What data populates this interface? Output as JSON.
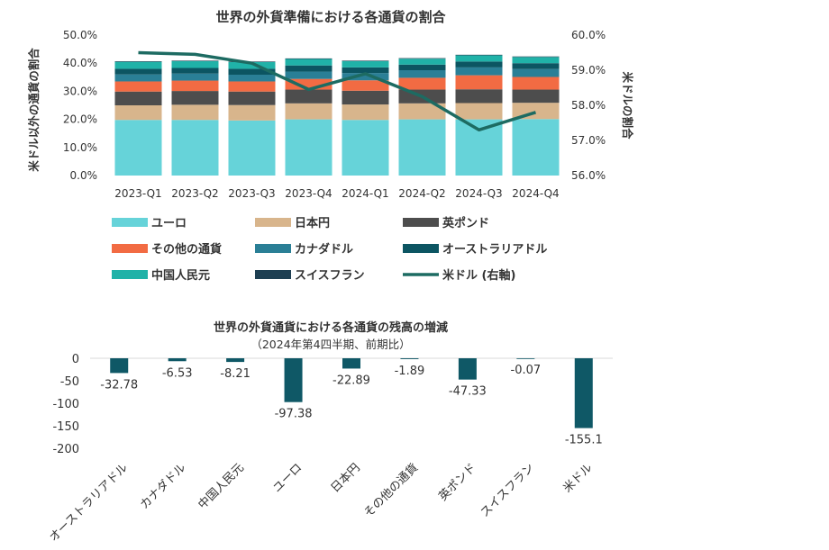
{
  "chart_data": [
    {
      "type": "bar",
      "stacked": true,
      "title": "世界の外貨準備における各通貨の割合",
      "categories": [
        "2023-Q1",
        "2023-Q2",
        "2023-Q3",
        "2023-Q4",
        "2024-Q1",
        "2024-Q2",
        "2024-Q3",
        "2024-Q4"
      ],
      "ylabel": "米ドル以外の通貨の割合",
      "ylim": [
        0,
        50
      ],
      "yticks": [
        "0.0%",
        "10.0%",
        "20.0%",
        "30.0%",
        "40.0%",
        "50.0%"
      ],
      "y2label": "米ドルの割合",
      "y2lim": [
        56,
        60
      ],
      "y2ticks": [
        "56.0%",
        "57.0%",
        "58.0%",
        "59.0%",
        "60.0%"
      ],
      "legend_position": "bottom",
      "series": [
        {
          "name": "ユーロ",
          "color": "#66d3d9",
          "values": [
            19.8,
            19.8,
            19.6,
            20.0,
            19.8,
            20.0,
            20.0,
            20.1
          ]
        },
        {
          "name": "日本円",
          "color": "#d8b58c",
          "values": [
            5.2,
            5.4,
            5.5,
            5.7,
            5.5,
            5.7,
            5.8,
            5.8
          ]
        },
        {
          "name": "英ポンド",
          "color": "#4d4d4d",
          "values": [
            4.9,
            4.9,
            4.8,
            4.9,
            4.9,
            4.9,
            4.9,
            4.7
          ]
        },
        {
          "name": "その他の通貨",
          "color": "#f26b43",
          "values": [
            3.6,
            3.7,
            3.6,
            3.8,
            3.7,
            4.2,
            5.0,
            4.5
          ]
        },
        {
          "name": "カナダドル",
          "color": "#2a7f96",
          "values": [
            2.5,
            2.5,
            2.4,
            2.6,
            2.6,
            2.7,
            2.8,
            2.8
          ]
        },
        {
          "name": "オーストラリアドル",
          "color": "#0c5562",
          "values": [
            2.0,
            2.0,
            2.1,
            2.2,
            2.0,
            2.0,
            2.1,
            2.1
          ]
        },
        {
          "name": "中国人民元",
          "color": "#20b2a8",
          "values": [
            2.5,
            2.4,
            2.4,
            2.3,
            2.2,
            2.1,
            2.2,
            2.2
          ]
        },
        {
          "name": "スイスフラン",
          "color": "#1e3f52",
          "values": [
            0.2,
            0.2,
            0.2,
            0.2,
            0.2,
            0.2,
            0.2,
            0.2
          ]
        }
      ],
      "line_series": {
        "name": "米ドル (右軸)",
        "color": "#1d6b62",
        "values": [
          59.5,
          59.45,
          59.2,
          58.45,
          58.9,
          58.25,
          57.3,
          57.8
        ]
      }
    },
    {
      "type": "bar",
      "title": "世界の外貨通貨における各通貨の残高の増減",
      "subtitle": "（2024年第4四半期、前期比）",
      "categories": [
        "オーストラリアドル",
        "カナダドル",
        "中国人民元",
        "ユーロ",
        "日本円",
        "その他の通貨",
        "英ポンド",
        "スイスフラン",
        "米ドル"
      ],
      "values": [
        -32.78,
        -6.53,
        -8.21,
        -97.38,
        -22.89,
        -1.89,
        -47.33,
        -0.07,
        -155.1
      ],
      "labels": [
        "-32.78",
        "-6.53",
        "-8.21",
        "-97.38",
        "-22.89",
        "-1.89",
        "-47.33",
        "-0.07",
        "-155.1"
      ],
      "ylim": [
        -200,
        0
      ],
      "yticks": [
        "0",
        "-50",
        "-100",
        "-150",
        "-200"
      ],
      "color": "#0f5866"
    }
  ]
}
